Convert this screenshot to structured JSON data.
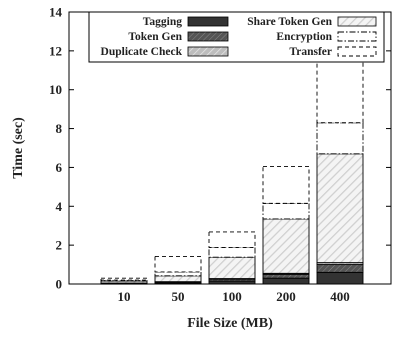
{
  "chart_data": {
    "type": "bar",
    "stacked": true,
    "title": "",
    "xlabel": "File Size (MB)",
    "ylabel": "Time (sec)",
    "ylim": [
      0,
      14
    ],
    "yticks": [
      0,
      2,
      4,
      6,
      8,
      10,
      12,
      14
    ],
    "categories": [
      "10",
      "50",
      "100",
      "200",
      "400"
    ],
    "grid": false,
    "legend_position": "top",
    "series": [
      {
        "name": "Tagging",
        "values": [
          0.02,
          0.05,
          0.15,
          0.3,
          0.6
        ]
      },
      {
        "name": "Token Gen",
        "values": [
          0.02,
          0.05,
          0.1,
          0.2,
          0.4
        ]
      },
      {
        "name": "Duplicate Check",
        "values": [
          0.01,
          0.02,
          0.03,
          0.05,
          0.1
        ]
      },
      {
        "name": "Share Token Gen",
        "values": [
          0.1,
          0.3,
          1.1,
          2.8,
          5.6
        ]
      },
      {
        "name": "Encryption",
        "values": [
          0.05,
          0.2,
          0.5,
          0.8,
          1.6
        ]
      },
      {
        "name": "Transfer",
        "values": [
          0.1,
          0.8,
          0.8,
          1.9,
          3.6
        ]
      }
    ],
    "legend_order": [
      "Tagging",
      "Share Token Gen",
      "Token Gen",
      "Encryption",
      "Duplicate Check",
      "Transfer"
    ],
    "colors": {
      "Tagging": "#333333",
      "Token Gen": "#555555",
      "Duplicate Check": "#bfbfbf",
      "Share Token Gen": "#d9d9d9",
      "Encryption": "#ffffff",
      "Transfer": "#ffffff"
    }
  }
}
